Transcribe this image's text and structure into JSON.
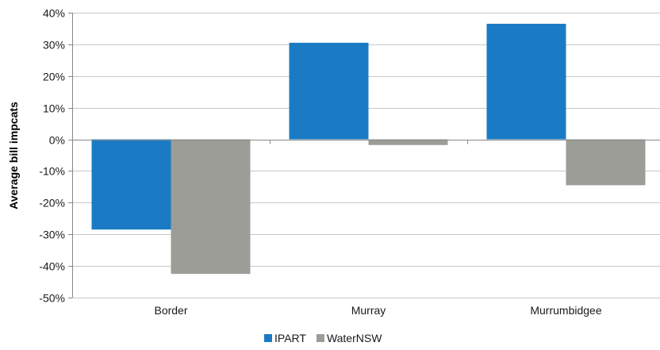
{
  "chart_data": {
    "type": "bar",
    "title": "",
    "xlabel": "",
    "ylabel": "Average bill impcats",
    "categories": [
      "Border",
      "Murray",
      "Murrumbidgee"
    ],
    "series": [
      {
        "name": "IPART",
        "values": [
          -0.285,
          0.305,
          0.365
        ],
        "color": "#1a7bc4"
      },
      {
        "name": "WaterNSW",
        "values": [
          -0.425,
          -0.018,
          -0.145
        ],
        "color": "#9d9d98"
      }
    ],
    "ylim": [
      -0.5,
      0.4
    ],
    "yticks": [
      0.4,
      0.3,
      0.2,
      0.1,
      0,
      -0.1,
      -0.2,
      -0.3,
      -0.4,
      -0.5
    ],
    "ytick_labels": [
      "40%",
      "30%",
      "20%",
      "10%",
      "0%",
      "-10%",
      "-20%",
      "-30%",
      "-40%",
      "-50%"
    ],
    "grid": true,
    "legend_position": "bottom"
  }
}
